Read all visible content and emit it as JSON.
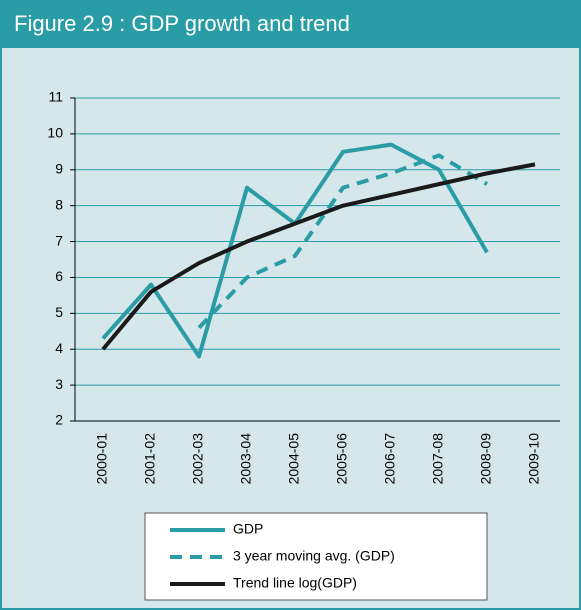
{
  "chart_data": {
    "type": "line",
    "title": "Figure 2.9 : GDP growth and trend",
    "categories": [
      "2000-01",
      "2001-02",
      "2002-03",
      "2003-04",
      "2004-05",
      "2005-06",
      "2006-07",
      "2007-08",
      "2008-09",
      "2009-10"
    ],
    "series": [
      {
        "name": "GDP",
        "color": "#2a9ca5",
        "dashed": false,
        "values": [
          4.3,
          5.8,
          3.8,
          8.5,
          7.5,
          9.5,
          9.7,
          9.0,
          6.7,
          null
        ]
      },
      {
        "name": "3 year moving avg. (GDP)",
        "color": "#2a9ca5",
        "dashed": true,
        "values": [
          null,
          null,
          4.6,
          6.0,
          6.6,
          8.5,
          8.9,
          9.4,
          8.6,
          null
        ]
      },
      {
        "name": "Trend line log(GDP)",
        "color": "#1a1a1a",
        "dashed": false,
        "values": [
          4.0,
          5.6,
          6.4,
          7.0,
          7.5,
          8.0,
          8.3,
          8.6,
          8.9,
          9.15
        ]
      }
    ],
    "ylim": [
      2,
      11
    ],
    "yticks": [
      2,
      3,
      4,
      5,
      6,
      7,
      8,
      9,
      10,
      11
    ],
    "grid": true
  }
}
